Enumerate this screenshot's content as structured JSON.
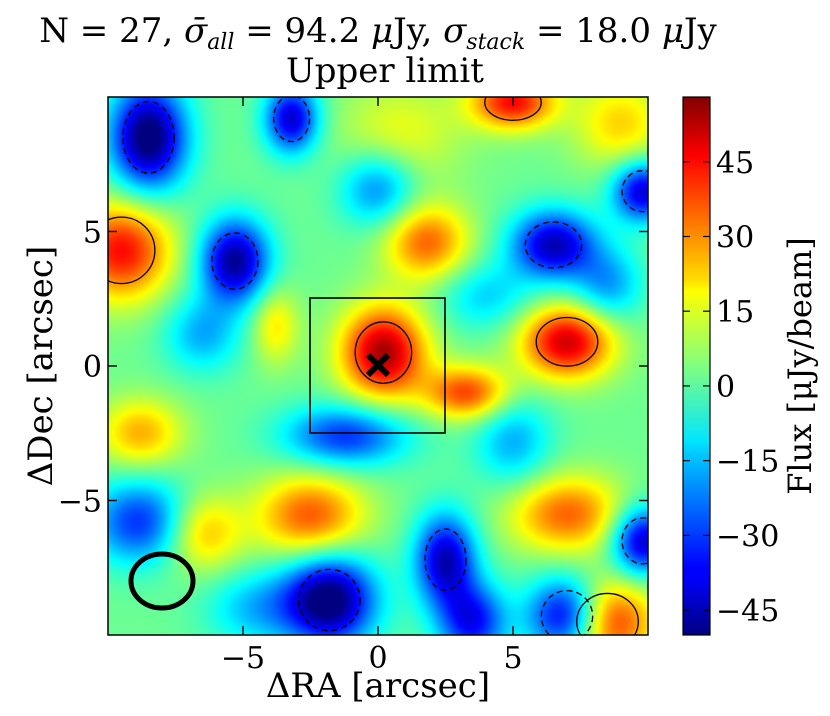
{
  "chart_data": {
    "type": "heatmap",
    "title_parts": {
      "n": "N = 27, ",
      "sigma_all_sym": "σ̄",
      "sigma_all_sub": "all",
      "mid": " = 94.2 ",
      "mu1": "μ",
      "unit1": "Jy, ",
      "sigma_stack_sym": "σ",
      "sigma_stack_sub": "stack",
      "end": " = 18.0 ",
      "mu2": "μ",
      "unit2": "Jy"
    },
    "subtitle": "Upper limit",
    "xlabel": "ΔRA [arcsec]",
    "ylabel": "ΔDec [arcsec]",
    "colorbar_label": "Flux [μJy/beam]",
    "xlim": [
      -10,
      10
    ],
    "ylim": [
      -10,
      10
    ],
    "xticks": [
      -5,
      0,
      5
    ],
    "xtick_labels": [
      "−5",
      "0",
      "5"
    ],
    "yticks": [
      5,
      0,
      -5
    ],
    "ytick_labels": [
      "5",
      "0",
      "−5"
    ],
    "clim": [
      -50,
      58
    ],
    "cticks": [
      45,
      30,
      15,
      0,
      -15,
      -30,
      -45
    ],
    "ctick_labels": [
      "45",
      "30",
      "15",
      "0",
      "−15",
      "−30",
      "−45"
    ],
    "colormap": "jet",
    "stack_box": {
      "x": [
        -2.5,
        2.5
      ],
      "y": [
        -2.5,
        2.5
      ]
    },
    "marker": {
      "symbol": "x",
      "x": 0,
      "y": 0
    },
    "beam": {
      "x": -8,
      "y": -8,
      "major": 2.4,
      "minor": 2.0
    },
    "background_level": 2,
    "sources": [
      {
        "x": 0.2,
        "y": 0.5,
        "flux": 52,
        "rx": 1.1,
        "ry": 1.2
      },
      {
        "x": 7.0,
        "y": 0.9,
        "flux": 48,
        "rx": 1.2,
        "ry": 0.95
      },
      {
        "x": -9.5,
        "y": 4.3,
        "flux": 42,
        "rx": 1.3,
        "ry": 1.3
      },
      {
        "x": 1.8,
        "y": 4.6,
        "flux": 32,
        "rx": 1.1,
        "ry": 1.0
      },
      {
        "x": -3.8,
        "y": 1.5,
        "flux": 18,
        "rx": 0.6,
        "ry": 1.0
      },
      {
        "x": 3.3,
        "y": -1.0,
        "flux": 36,
        "rx": 1.1,
        "ry": 0.7
      },
      {
        "x": -2.5,
        "y": -5.6,
        "flux": 34,
        "rx": 1.4,
        "ry": 1.1
      },
      {
        "x": 7.0,
        "y": -5.5,
        "flux": 32,
        "rx": 1.5,
        "ry": 1.0
      },
      {
        "x": 8.5,
        "y": -9.5,
        "flux": 42,
        "rx": 1.2,
        "ry": 1.1
      },
      {
        "x": 5.0,
        "y": 9.8,
        "flux": 42,
        "rx": 1.1,
        "ry": 0.7
      },
      {
        "x": -8.8,
        "y": -2.5,
        "flux": 24,
        "rx": 1.1,
        "ry": 0.9
      },
      {
        "x": -6.5,
        "y": -6.2,
        "flux": 24,
        "rx": 1.0,
        "ry": 1.0
      },
      {
        "x": 9.0,
        "y": 9.0,
        "flux": 20,
        "rx": 1.2,
        "ry": 1.2
      },
      {
        "x": 0.8,
        "y": 8.6,
        "flux": 14,
        "rx": 1.6,
        "ry": 1.4
      },
      {
        "x": -8.5,
        "y": 8.5,
        "flux": -56,
        "rx": 1.0,
        "ry": 1.4
      },
      {
        "x": -5.3,
        "y": 3.9,
        "flux": -50,
        "rx": 0.9,
        "ry": 1.1
      },
      {
        "x": -3.2,
        "y": 9.2,
        "flux": -44,
        "rx": 0.7,
        "ry": 0.9
      },
      {
        "x": 6.5,
        "y": 4.5,
        "flux": -46,
        "rx": 1.1,
        "ry": 0.9
      },
      {
        "x": 9.8,
        "y": 6.5,
        "flux": -44,
        "rx": 0.8,
        "ry": 0.8
      },
      {
        "x": -1.8,
        "y": -8.7,
        "flux": -56,
        "rx": 1.2,
        "ry": 1.2
      },
      {
        "x": 2.5,
        "y": -7.2,
        "flux": -46,
        "rx": 0.8,
        "ry": 1.2
      },
      {
        "x": 7.0,
        "y": -9.3,
        "flux": -50,
        "rx": 1.0,
        "ry": 1.0
      },
      {
        "x": 9.8,
        "y": -6.5,
        "flux": -46,
        "rx": 0.8,
        "ry": 0.9
      },
      {
        "x": -8.8,
        "y": -5.8,
        "flux": -34,
        "rx": 1.3,
        "ry": 1.1
      },
      {
        "x": -1.2,
        "y": -2.6,
        "flux": -34,
        "rx": 1.6,
        "ry": 0.8
      },
      {
        "x": 3.5,
        "y": -9.5,
        "flux": -38,
        "rx": 0.9,
        "ry": 1.0
      },
      {
        "x": 0.0,
        "y": 6.6,
        "flux": -26,
        "rx": 1.0,
        "ry": 1.0
      },
      {
        "x": -6.5,
        "y": 1.2,
        "flux": -20,
        "rx": 1.0,
        "ry": 1.0
      },
      {
        "x": 4.0,
        "y": 2.6,
        "flux": -16,
        "rx": 1.2,
        "ry": 0.9
      },
      {
        "x": 8.5,
        "y": 3.0,
        "flux": -22,
        "rx": 0.9,
        "ry": 1.0
      },
      {
        "x": -4.5,
        "y": -9.0,
        "flux": -18,
        "rx": 1.3,
        "ry": 1.0
      },
      {
        "x": 5.0,
        "y": -2.8,
        "flux": -20,
        "rx": 1.0,
        "ry": 1.2
      }
    ]
  }
}
